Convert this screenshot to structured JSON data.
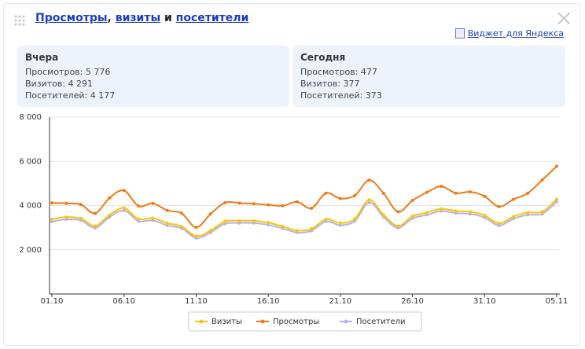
{
  "header": {
    "title_parts": [
      "Просмотры",
      ", ",
      "визиты",
      " и ",
      "посетители"
    ],
    "close": "×",
    "widget_link": "Виджет для Яндекса"
  },
  "summary": [
    {
      "title": "Вчера",
      "lines": [
        "Просмотров: 5 776",
        "Визитов: 4 291",
        "Посетителей: 4 177"
      ]
    },
    {
      "title": "Сегодня",
      "lines": [
        "Просмотров: 477",
        "Визитов: 377",
        "Посетителей: 373"
      ]
    }
  ],
  "chart_data": {
    "type": "line",
    "categories": [
      "01.10",
      null,
      null,
      null,
      null,
      "06.10",
      null,
      null,
      null,
      null,
      "11.10",
      null,
      null,
      null,
      null,
      "16.10",
      null,
      null,
      null,
      null,
      "21.10",
      null,
      null,
      null,
      null,
      "26.10",
      null,
      null,
      null,
      null,
      "31.10",
      null,
      null,
      null,
      null,
      "05.11"
    ],
    "highlighted": [
      10,
      25
    ],
    "highlight_color": "#cc0000",
    "series": [
      {
        "name": "Визиты",
        "color": "#f2c811",
        "values": [
          3380,
          3480,
          3420,
          3080,
          3580,
          3890,
          3400,
          3430,
          3200,
          3060,
          2620,
          2870,
          3280,
          3310,
          3310,
          3230,
          3060,
          2870,
          2950,
          3380,
          3210,
          3400,
          4260,
          3580,
          3080,
          3520,
          3680,
          3850,
          3760,
          3720,
          3560,
          3190,
          3500,
          3680,
          3720,
          4291
        ]
      },
      {
        "name": "Просмотры",
        "color": "#ee7a1a",
        "values": [
          4120,
          4100,
          4050,
          3650,
          4350,
          4680,
          3980,
          4100,
          3780,
          3650,
          3010,
          3620,
          4130,
          4110,
          4080,
          4030,
          3990,
          4170,
          3880,
          4560,
          4320,
          4450,
          5150,
          4550,
          3720,
          4230,
          4600,
          4870,
          4560,
          4620,
          4420,
          3950,
          4280,
          4560,
          5160,
          5776
        ]
      },
      {
        "name": "Посетители",
        "color": "#bbb0e6",
        "values": [
          3270,
          3380,
          3330,
          2990,
          3480,
          3780,
          3300,
          3330,
          3100,
          2970,
          2530,
          2780,
          3180,
          3210,
          3210,
          3130,
          2970,
          2780,
          2860,
          3280,
          3110,
          3300,
          4140,
          3480,
          2990,
          3420,
          3580,
          3750,
          3660,
          3620,
          3460,
          3100,
          3400,
          3580,
          3620,
          4177
        ]
      }
    ],
    "draw_order": [
      2,
      0,
      1
    ],
    "ylim": [
      0,
      8000
    ],
    "yticks": [
      {
        "value": 2000,
        "label": "2 000"
      },
      {
        "value": 4000,
        "label": "4 000"
      },
      {
        "value": 6000,
        "label": "6 000"
      },
      {
        "value": 8000,
        "label": "8 000"
      }
    ],
    "grid": true
  }
}
